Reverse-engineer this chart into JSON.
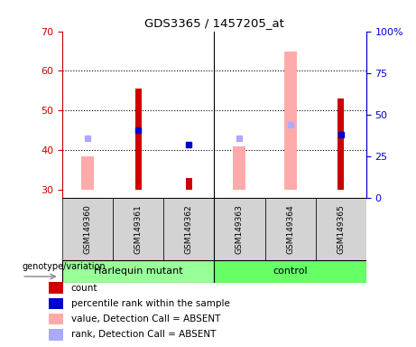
{
  "title": "GDS3365 / 1457205_at",
  "samples": [
    "GSM149360",
    "GSM149361",
    "GSM149362",
    "GSM149363",
    "GSM149364",
    "GSM149365"
  ],
  "ylim_left": [
    28,
    70
  ],
  "ylim_right": [
    0,
    100
  ],
  "yticks_left": [
    30,
    40,
    50,
    60,
    70
  ],
  "yticks_right": [
    0,
    25,
    50,
    75,
    100
  ],
  "yticklabels_right": [
    "0",
    "25",
    "50",
    "75",
    "100%"
  ],
  "red_bars": [
    null,
    55.5,
    33,
    null,
    null,
    53
  ],
  "pink_bars": [
    38.5,
    null,
    null,
    41,
    65,
    null
  ],
  "blue_squares": [
    null,
    45,
    41.5,
    null,
    null,
    44
  ],
  "lightblue_squares": [
    43,
    null,
    null,
    43,
    46.5,
    null
  ],
  "group1_label": "Harlequin mutant",
  "group2_label": "control",
  "bar_bottom": 30,
  "genotype_label": "genotype/variation",
  "legend_items": [
    {
      "color": "#cc0000",
      "label": "count"
    },
    {
      "color": "#0000cc",
      "label": "percentile rank within the sample"
    },
    {
      "color": "#ffaaaa",
      "label": "value, Detection Call = ABSENT"
    },
    {
      "color": "#aaaaff",
      "label": "rank, Detection Call = ABSENT"
    }
  ],
  "red_color": "#cc0000",
  "pink_color": "#ffaaaa",
  "blue_color": "#0000cc",
  "lightblue_color": "#aaaaff",
  "group1_color": "#99ff99",
  "group2_color": "#66ff66",
  "gray_color": "#d3d3d3",
  "tick_color_left": "#cc0000",
  "tick_color_right": "#0000cc",
  "pink_bar_width": 0.25,
  "red_bar_width": 0.12
}
